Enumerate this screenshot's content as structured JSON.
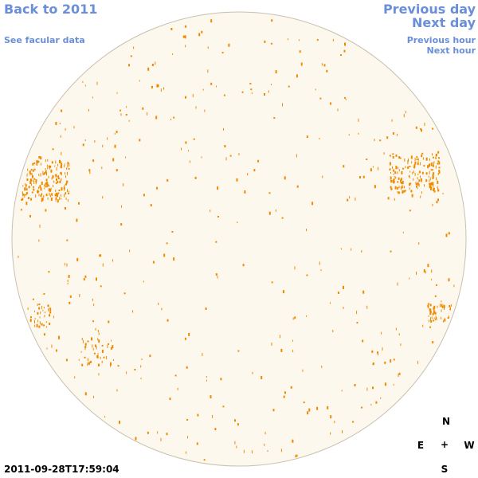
{
  "nav": {
    "back_label": "Back to 2011",
    "facular_label": "See facular data",
    "prev_day_label": "Previous day",
    "next_day_label": "Next day",
    "prev_hour_label": "Previous hour",
    "next_hour_label": "Next hour"
  },
  "timestamp": "2011-09-28T17:59:04",
  "compass": {
    "north": "N",
    "south": "S",
    "east": "E",
    "west": "W",
    "center": "+"
  },
  "colors": {
    "link": "#6a8fd8",
    "disk_fill": "#fdf8ee",
    "disk_outline": "#c9bfae",
    "feature": "#ee8a00"
  }
}
